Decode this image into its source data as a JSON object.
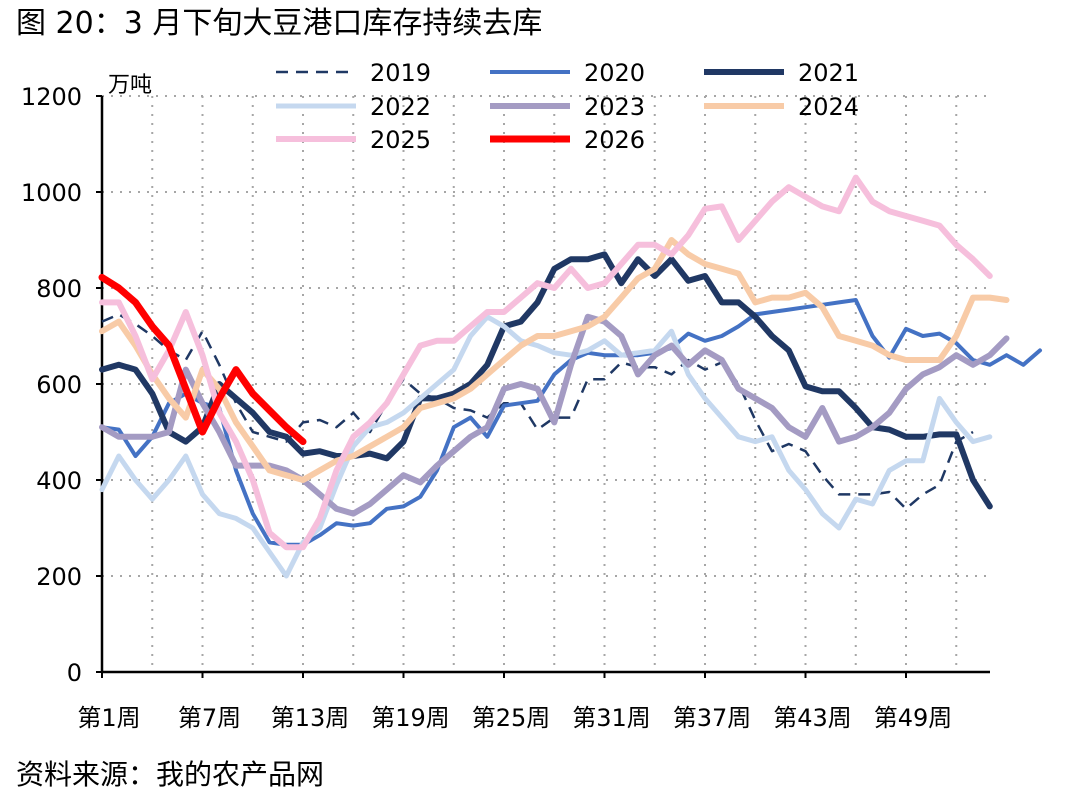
{
  "title": "图 20：3 月下旬大豆港口库存持续去库",
  "source": "资料来源：我的农产品网",
  "chart_data": {
    "type": "line",
    "unit": "万吨",
    "ylim": [
      0,
      1200
    ],
    "yticks": [
      0,
      200,
      400,
      600,
      800,
      1000,
      1200
    ],
    "xlim": [
      1,
      53
    ],
    "xticks": [
      {
        "week": 1,
        "label": "第1周"
      },
      {
        "week": 7,
        "label": "第7周"
      },
      {
        "week": 13,
        "label": "第13周"
      },
      {
        "week": 19,
        "label": "第19周"
      },
      {
        "week": 25,
        "label": "第25周"
      },
      {
        "week": 31,
        "label": "第31周"
      },
      {
        "week": 37,
        "label": "第37周"
      },
      {
        "week": 43,
        "label": "第43周"
      },
      {
        "week": 49,
        "label": "第49周"
      }
    ],
    "grid": true,
    "legend_position": "top",
    "series": [
      {
        "name": "2019",
        "color": "#1f3864",
        "width": 2.5,
        "dash": "12 8",
        "values": [
          730,
          745,
          725,
          700,
          670,
          650,
          710,
          640,
          560,
          500,
          490,
          480,
          520,
          525,
          510,
          540,
          500,
          560,
          610,
          580,
          570,
          550,
          545,
          530,
          560,
          560,
          505,
          530,
          530,
          610,
          610,
          645,
          635,
          635,
          620,
          650,
          630,
          645,
          600,
          525,
          460,
          475,
          460,
          410,
          370,
          370,
          370,
          375,
          340,
          370,
          390,
          480,
          500
        ]
      },
      {
        "name": "2020",
        "color": "#4472c4",
        "width": 4,
        "values": [
          510,
          505,
          450,
          490,
          560,
          580,
          560,
          550,
          420,
          330,
          270,
          265,
          265,
          285,
          310,
          305,
          310,
          340,
          345,
          365,
          420,
          510,
          530,
          490,
          555,
          560,
          565,
          620,
          650,
          665,
          660,
          660,
          660,
          665,
          675,
          705,
          690,
          700,
          720,
          745,
          750,
          755,
          760,
          765,
          770,
          775,
          700,
          655,
          715,
          700,
          705,
          685,
          650,
          640,
          660,
          640,
          670
        ]
      },
      {
        "name": "2021",
        "color": "#203864",
        "width": 6,
        "values": [
          630,
          640,
          630,
          580,
          500,
          480,
          510,
          600,
          570,
          540,
          500,
          490,
          455,
          460,
          450,
          450,
          455,
          445,
          480,
          570,
          570,
          580,
          600,
          640,
          720,
          730,
          770,
          840,
          860,
          860,
          870,
          810,
          860,
          825,
          860,
          815,
          825,
          770,
          770,
          740,
          700,
          670,
          595,
          585,
          585,
          550,
          510,
          505,
          490,
          490,
          495,
          495,
          400,
          345
        ]
      },
      {
        "name": "2022",
        "color": "#c5d8ef",
        "width": 5,
        "values": [
          380,
          450,
          400,
          360,
          400,
          450,
          370,
          330,
          320,
          300,
          250,
          200,
          270,
          300,
          390,
          470,
          510,
          520,
          540,
          570,
          600,
          630,
          700,
          740,
          720,
          690,
          680,
          665,
          660,
          670,
          690,
          660,
          665,
          670,
          710,
          620,
          570,
          530,
          490,
          480,
          490,
          420,
          380,
          330,
          300,
          360,
          350,
          420,
          440,
          440,
          570,
          520,
          480,
          490
        ]
      },
      {
        "name": "2023",
        "color": "#a49bc3",
        "width": 6,
        "values": [
          510,
          490,
          490,
          490,
          500,
          630,
          560,
          500,
          430,
          430,
          430,
          420,
          400,
          370,
          340,
          330,
          350,
          380,
          410,
          395,
          430,
          460,
          490,
          510,
          590,
          600,
          590,
          520,
          640,
          740,
          730,
          700,
          620,
          660,
          680,
          640,
          670,
          650,
          590,
          570,
          550,
          510,
          490,
          550,
          480,
          490,
          510,
          540,
          590,
          620,
          635,
          660,
          640,
          660,
          695
        ]
      },
      {
        "name": "2024",
        "color": "#f8cba7",
        "width": 6,
        "values": [
          710,
          730,
          680,
          620,
          570,
          530,
          630,
          590,
          520,
          470,
          420,
          410,
          400,
          420,
          440,
          450,
          470,
          490,
          510,
          550,
          560,
          570,
          590,
          620,
          650,
          680,
          700,
          700,
          710,
          720,
          740,
          780,
          820,
          840,
          900,
          870,
          850,
          840,
          830,
          770,
          780,
          780,
          790,
          760,
          700,
          690,
          680,
          660,
          650,
          650,
          650,
          700,
          780,
          780,
          775
        ]
      },
      {
        "name": "2025",
        "color": "#f6bfdc",
        "width": 6,
        "values": [
          770,
          770,
          700,
          610,
          670,
          750,
          660,
          540,
          480,
          400,
          290,
          260,
          260,
          320,
          420,
          490,
          520,
          560,
          620,
          680,
          690,
          690,
          720,
          750,
          750,
          780,
          810,
          800,
          840,
          800,
          810,
          850,
          890,
          890,
          870,
          910,
          965,
          970,
          900,
          940,
          980,
          1010,
          990,
          970,
          960,
          1030,
          980,
          960,
          950,
          940,
          930,
          890,
          860,
          825
        ]
      },
      {
        "name": "2026",
        "color": "#ff0000",
        "width": 7,
        "values": [
          822,
          800,
          770,
          720,
          680,
          590,
          500,
          570,
          630,
          580,
          545,
          510,
          480
        ]
      }
    ]
  }
}
